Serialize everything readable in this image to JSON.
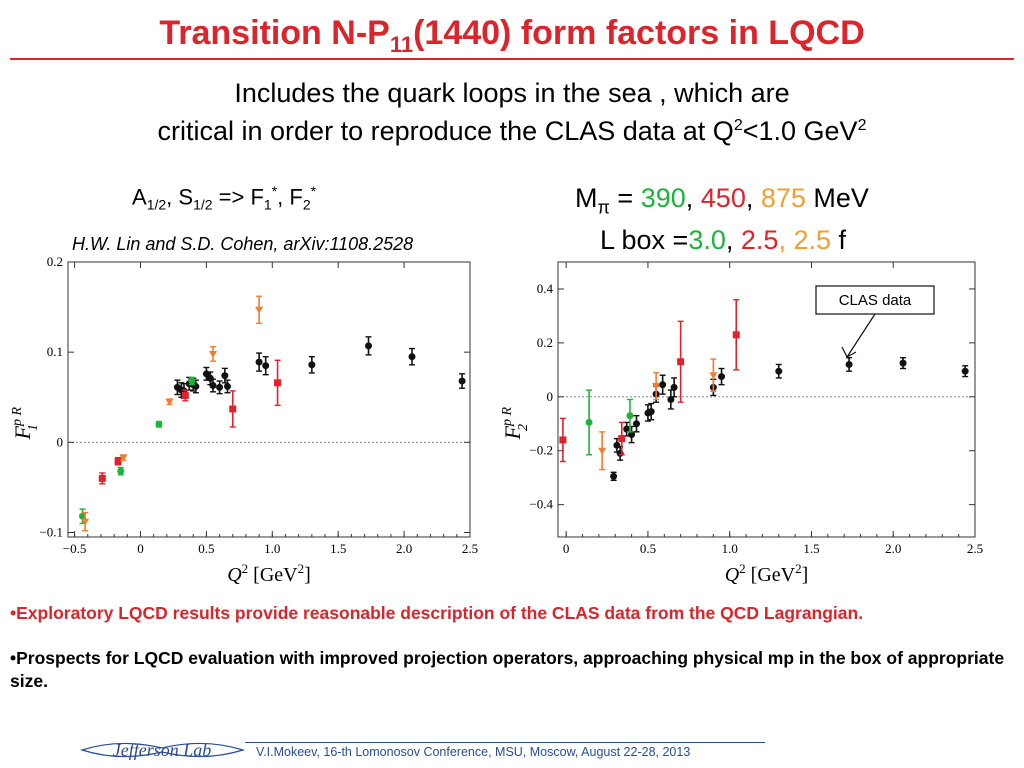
{
  "title": {
    "main": "Transition N-P",
    "sub": "11",
    "rest": "(1440) form factors in LQCD"
  },
  "subtitle": {
    "line1": "Includes the quark loops in the sea , which are",
    "line2_pre": "critical in order to reproduce the CLAS data at Q",
    "sup1": "2",
    "line2_mid": "<1.0 GeV",
    "sup2": "2"
  },
  "amplitudes": {
    "a": "A",
    "a_sub": "1/2",
    "comma": ", S",
    "s_sub": "1/2",
    "arrow": " => F",
    "f1_sub": "1",
    "f1_sup": "*",
    "comma2": ", F",
    "f2_sub": "2",
    "f2_sup": "*"
  },
  "citation": "H.W. Lin and S.D. Cohen, arXiv:1108.2528",
  "mpi": {
    "prefix": "M",
    "sub": "π",
    "eq": " = ",
    "v1": "390",
    "c1": ", ",
    "v2": "450",
    "c2": ", ",
    "v3": "875",
    "unit": " MeV"
  },
  "lbox": {
    "prefix": "L box =",
    "v1": "3.0",
    "c1": ", ",
    "v2": "2.5",
    "c2": ", ",
    "v3": "2.5",
    "unit": " f"
  },
  "colors": {
    "title": "#d9252b",
    "m390": "#1db33b",
    "m450": "#e0222e",
    "m875": "#f0a030",
    "clas": "#111111",
    "orange_pts": "#ef7d32",
    "footer": "#2a4c99"
  },
  "callout": "CLAS data",
  "chart_data": [
    {
      "type": "scatter",
      "ylabel": "F",
      "ylabel_sup": "p R",
      "ylabel_sub": "1",
      "xlabel": "Q",
      "xlabel_sup": "2",
      "xlabel_unit": " [GeV",
      "xlabel_unit_sup": "2",
      "xlabel_close": "]",
      "xlim": [
        -0.55,
        2.5
      ],
      "ylim": [
        -0.105,
        0.2
      ],
      "xticks": [
        -0.5,
        0,
        0.5,
        1.0,
        1.5,
        2.0,
        2.5
      ],
      "xtick_labels": [
        "−0.5",
        "0",
        "0.5",
        "1.0",
        "1.5",
        "2.0",
        "2.5"
      ],
      "yticks": [
        -0.1,
        0,
        0.1,
        0.2
      ],
      "ytick_labels": [
        "−0.1",
        "0",
        "0.1",
        "0.2"
      ],
      "series": [
        {
          "color": "#111111",
          "marker": "circle",
          "points": [
            {
              "x": 0.28,
              "y": 0.061,
              "e": 0.008
            },
            {
              "x": 0.31,
              "y": 0.058,
              "e": 0.008
            },
            {
              "x": 0.33,
              "y": 0.057,
              "e": 0.008
            },
            {
              "x": 0.37,
              "y": 0.065,
              "e": 0.007
            },
            {
              "x": 0.4,
              "y": 0.064,
              "e": 0.007
            },
            {
              "x": 0.42,
              "y": 0.062,
              "e": 0.007
            },
            {
              "x": 0.5,
              "y": 0.076,
              "e": 0.007
            },
            {
              "x": 0.53,
              "y": 0.071,
              "e": 0.007
            },
            {
              "x": 0.55,
              "y": 0.063,
              "e": 0.007
            },
            {
              "x": 0.6,
              "y": 0.061,
              "e": 0.007
            },
            {
              "x": 0.64,
              "y": 0.074,
              "e": 0.008
            },
            {
              "x": 0.66,
              "y": 0.062,
              "e": 0.007
            },
            {
              "x": 0.9,
              "y": 0.089,
              "e": 0.01
            },
            {
              "x": 0.95,
              "y": 0.085,
              "e": 0.01
            },
            {
              "x": 1.3,
              "y": 0.086,
              "e": 0.009
            },
            {
              "x": 1.73,
              "y": 0.107,
              "e": 0.01
            },
            {
              "x": 2.06,
              "y": 0.095,
              "e": 0.009
            },
            {
              "x": 2.44,
              "y": 0.068,
              "e": 0.008
            }
          ]
        },
        {
          "color": "#1db33b",
          "marker": "circle",
          "points": [
            {
              "x": -0.44,
              "y": -0.082,
              "e": 0.008
            },
            {
              "x": -0.15,
              "y": -0.032,
              "e": 0.004
            },
            {
              "x": 0.14,
              "y": 0.02,
              "e": 0.003
            },
            {
              "x": 0.39,
              "y": 0.068,
              "e": 0.004
            }
          ]
        },
        {
          "color": "#e0222e",
          "marker": "square",
          "points": [
            {
              "x": -0.29,
              "y": -0.04,
              "e": 0.006
            },
            {
              "x": -0.17,
              "y": -0.021,
              "e": 0.004
            },
            {
              "x": 0.34,
              "y": 0.052,
              "e": 0.006
            },
            {
              "x": 0.7,
              "y": 0.037,
              "e": 0.02
            },
            {
              "x": 1.04,
              "y": 0.066,
              "e": 0.025
            }
          ]
        },
        {
          "color": "#ef7d32",
          "marker": "triangle",
          "points": [
            {
              "x": -0.42,
              "y": -0.088,
              "e": 0.01
            },
            {
              "x": -0.13,
              "y": -0.017,
              "e": 0.003
            },
            {
              "x": 0.22,
              "y": 0.045,
              "e": 0.003
            },
            {
              "x": 0.55,
              "y": 0.098,
              "e": 0.008
            },
            {
              "x": 0.9,
              "y": 0.147,
              "e": 0.015
            }
          ]
        }
      ]
    },
    {
      "type": "scatter",
      "ylabel": "F",
      "ylabel_sup": "p R",
      "ylabel_sub": "2",
      "xlabel": "Q",
      "xlabel_sup": "2",
      "xlabel_unit": " [GeV",
      "xlabel_unit_sup": "2",
      "xlabel_close": "]",
      "xlim": [
        -0.05,
        2.5
      ],
      "ylim": [
        -0.52,
        0.5
      ],
      "xticks": [
        0,
        0.5,
        1.0,
        1.5,
        2.0,
        2.5
      ],
      "xtick_labels": [
        "0",
        "0.5",
        "1.0",
        "1.5",
        "2.0",
        "2.5"
      ],
      "yticks": [
        -0.4,
        -0.2,
        0,
        0.2,
        0.4
      ],
      "ytick_labels": [
        "−0.4",
        "−0.2",
        "0",
        "0.2",
        "0.4"
      ],
      "series": [
        {
          "color": "#111111",
          "marker": "circle",
          "points": [
            {
              "x": 0.29,
              "y": -0.295,
              "e": 0.015
            },
            {
              "x": 0.31,
              "y": -0.18,
              "e": 0.025
            },
            {
              "x": 0.33,
              "y": -0.21,
              "e": 0.025
            },
            {
              "x": 0.37,
              "y": -0.12,
              "e": 0.025
            },
            {
              "x": 0.4,
              "y": -0.14,
              "e": 0.03
            },
            {
              "x": 0.43,
              "y": -0.1,
              "e": 0.03
            },
            {
              "x": 0.5,
              "y": -0.06,
              "e": 0.03
            },
            {
              "x": 0.52,
              "y": -0.055,
              "e": 0.03
            },
            {
              "x": 0.55,
              "y": 0.01,
              "e": 0.03
            },
            {
              "x": 0.59,
              "y": 0.045,
              "e": 0.035
            },
            {
              "x": 0.64,
              "y": -0.01,
              "e": 0.035
            },
            {
              "x": 0.66,
              "y": 0.035,
              "e": 0.035
            },
            {
              "x": 0.9,
              "y": 0.035,
              "e": 0.03
            },
            {
              "x": 0.95,
              "y": 0.075,
              "e": 0.03
            },
            {
              "x": 1.3,
              "y": 0.095,
              "e": 0.025
            },
            {
              "x": 1.73,
              "y": 0.12,
              "e": 0.025
            },
            {
              "x": 2.06,
              "y": 0.125,
              "e": 0.02
            },
            {
              "x": 2.44,
              "y": 0.095,
              "e": 0.02
            }
          ]
        },
        {
          "color": "#1db33b",
          "marker": "circle",
          "points": [
            {
              "x": 0.14,
              "y": -0.095,
              "e": 0.12
            },
            {
              "x": 0.39,
              "y": -0.07,
              "e": 0.06
            }
          ]
        },
        {
          "color": "#e0222e",
          "marker": "square",
          "points": [
            {
              "x": -0.02,
              "y": -0.16,
              "e": 0.08
            },
            {
              "x": 0.34,
              "y": -0.155,
              "e": 0.06
            },
            {
              "x": 0.7,
              "y": 0.13,
              "e": 0.15
            },
            {
              "x": 1.04,
              "y": 0.23,
              "e": 0.13
            }
          ]
        },
        {
          "color": "#ef7d32",
          "marker": "triangle",
          "points": [
            {
              "x": 0.22,
              "y": -0.2,
              "e": 0.07
            },
            {
              "x": 0.55,
              "y": 0.04,
              "e": 0.05
            },
            {
              "x": 0.9,
              "y": 0.08,
              "e": 0.06
            }
          ]
        }
      ]
    }
  ],
  "bullets": {
    "b1": "•Exploratory LQCD results  provide  reasonable description of the CLAS data from the QCD Lagrangian.",
    "b2": "•Prospects for LQCD evaluation with improved projection operators, approaching physical mp in the box of appropriate size."
  },
  "footer": "V.I.Mokeev, 16-th Lomonosov Conference, MSU, Moscow, August 22-28, 2013",
  "logo_text": "Jefferson Lab"
}
